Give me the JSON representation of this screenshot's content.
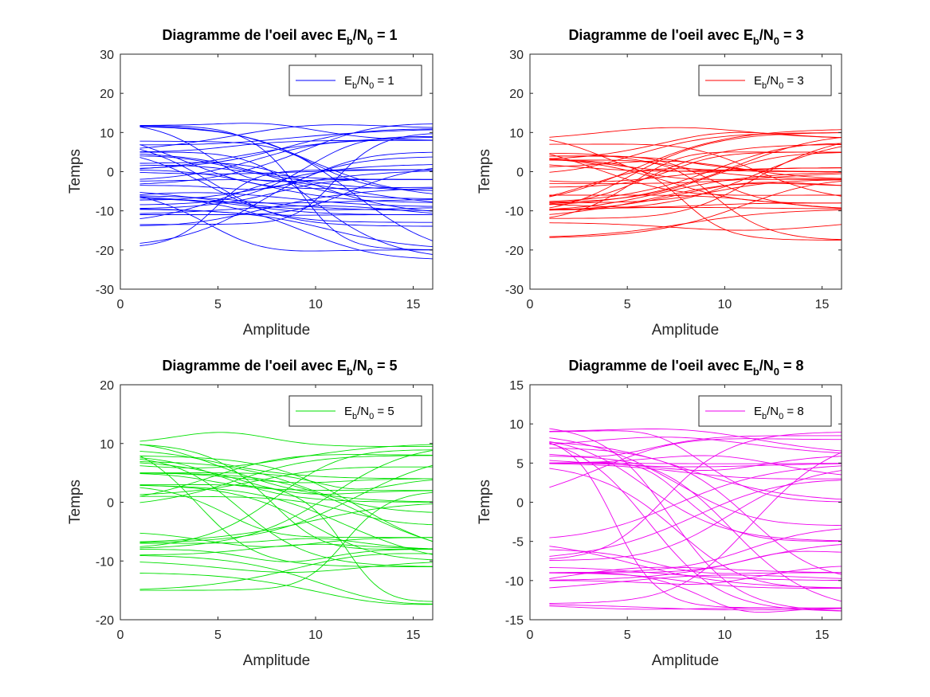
{
  "figure": {
    "panels": [
      {
        "title_prefix": "Diagramme de l'oeil avec E",
        "title_sub1": "b",
        "title_mid": "/N",
        "title_sub2": "0",
        "title_suffix": " = 1",
        "legend_prefix": "E",
        "legend_sub1": "b",
        "legend_mid": "/N",
        "legend_sub2": "0",
        "legend_suffix": " = 1",
        "color": "#0000ff"
      },
      {
        "title_prefix": "Diagramme de l'oeil avec E",
        "title_sub1": "b",
        "title_mid": "/N",
        "title_sub2": "0",
        "title_suffix": " = 3",
        "legend_prefix": "E",
        "legend_sub1": "b",
        "legend_mid": "/N",
        "legend_sub2": "0",
        "legend_suffix": " = 3",
        "color": "#ff0000"
      },
      {
        "title_prefix": "Diagramme de l'oeil avec E",
        "title_sub1": "b",
        "title_mid": "/N",
        "title_sub2": "0",
        "title_suffix": " = 5",
        "legend_prefix": "E",
        "legend_sub1": "b",
        "legend_mid": "/N",
        "legend_sub2": "0",
        "legend_suffix": " = 5",
        "color": "#00e000"
      },
      {
        "title_prefix": "Diagramme de l'oeil avec E",
        "title_sub1": "b",
        "title_mid": "/N",
        "title_sub2": "0",
        "title_suffix": " = 8",
        "legend_prefix": "E",
        "legend_sub1": "b",
        "legend_mid": "/N",
        "legend_sub2": "0",
        "legend_suffix": " = 8",
        "color": "#ee00ee"
      }
    ]
  },
  "chart_data": [
    {
      "type": "line",
      "title": "Diagramme de l'oeil avec Eb/N0 = 1",
      "xlabel": "Amplitude",
      "ylabel": "Temps",
      "xlim": [
        0,
        16
      ],
      "ylim": [
        -30,
        30
      ],
      "xticks": [
        0,
        5,
        10,
        15
      ],
      "yticks": [
        -30,
        -20,
        -10,
        0,
        10,
        20,
        30
      ],
      "legend": "top-right",
      "grid": false,
      "x": [
        1,
        2,
        3,
        4,
        5,
        6,
        7,
        8,
        9,
        10,
        11,
        12,
        13,
        14,
        15,
        16
      ],
      "series": [
        {
          "name": "Eb/N0 = 1",
          "values_by_x": {
            "1": [
              12.5,
              11.8,
              9,
              8.5,
              7.8,
              7,
              5,
              4,
              2,
              0.5,
              -2.5,
              -3.5,
              -4,
              -6,
              -8,
              -8.5,
              -9.5,
              -11,
              -12.5,
              -13.5,
              -19.5
            ],
            "16": [
              12,
              11,
              10,
              9.5,
              9,
              8,
              5,
              4,
              2,
              0.5,
              -2,
              -4,
              -5,
              -7,
              -8,
              -9,
              -10,
              -11,
              -13,
              -14,
              -20,
              -22.5
            ]
          }
        }
      ]
    },
    {
      "type": "line",
      "title": "Diagramme de l'oeil avec Eb/N0 = 3",
      "xlabel": "Amplitude",
      "ylabel": "Temps",
      "xlim": [
        0,
        16
      ],
      "ylim": [
        -30,
        30
      ],
      "xticks": [
        0,
        5,
        10,
        15
      ],
      "yticks": [
        -30,
        -20,
        -10,
        0,
        10,
        20,
        30
      ],
      "legend": "top-right",
      "grid": false,
      "x": [
        1,
        2,
        3,
        4,
        5,
        6,
        7,
        8,
        9,
        10,
        11,
        12,
        13,
        14,
        15,
        16
      ],
      "series": [
        {
          "name": "Eb/N0 = 3",
          "values_by_x": {
            "1": [
              11.5,
              10,
              9,
              8,
              7,
              6,
              4,
              3,
              1,
              -1,
              -3,
              -4,
              -6,
              -8,
              -9,
              -10,
              -12,
              -13,
              -17
            ],
            "16": [
              11,
              10,
              9.5,
              8.5,
              7,
              5,
              3,
              1,
              0,
              -2,
              -4,
              -6,
              -8,
              -9.5,
              -10,
              -11,
              -12,
              -17.5,
              -20
            ]
          }
        }
      ]
    },
    {
      "type": "line",
      "title": "Diagramme de l'oeil avec Eb/N0 = 5",
      "xlabel": "Amplitude",
      "ylabel": "Temps",
      "xlim": [
        0,
        16
      ],
      "ylim": [
        -20,
        20
      ],
      "xticks": [
        0,
        5,
        10,
        15
      ],
      "yticks": [
        -20,
        -10,
        0,
        10,
        20
      ],
      "legend": "top-right",
      "grid": false,
      "x": [
        1,
        2,
        3,
        4,
        5,
        6,
        7,
        8,
        9,
        10,
        11,
        12,
        13,
        14,
        15,
        16
      ],
      "series": [
        {
          "name": "Eb/N0 = 5",
          "values_by_x": {
            "1": [
              11,
              10,
              9,
              8,
              7,
              5,
              3,
              1,
              -1,
              -3,
              -5,
              -7,
              -8,
              -9,
              -10,
              -11,
              -12,
              -15
            ],
            "16": [
              10,
              9.5,
              9,
              8,
              6,
              4,
              2,
              0,
              -2,
              -4,
              -6,
              -8,
              -9,
              -10,
              -11,
              -15.5,
              -17
            ]
          }
        }
      ]
    },
    {
      "type": "line",
      "title": "Diagramme de l'oeil avec Eb/N0 = 8",
      "xlabel": "Amplitude",
      "ylabel": "Temps",
      "xlim": [
        0,
        16
      ],
      "ylim": [
        -15,
        15
      ],
      "xticks": [
        0,
        5,
        10,
        15
      ],
      "yticks": [
        -15,
        -10,
        -5,
        0,
        5,
        10,
        15
      ],
      "legend": "top-right",
      "grid": false,
      "x": [
        1,
        2,
        3,
        4,
        5,
        6,
        7,
        8,
        9,
        10,
        11,
        12,
        13,
        14,
        15,
        16
      ],
      "series": [
        {
          "name": "Eb/N0 = 8",
          "values_by_x": {
            "1": [
              10,
              9,
              8.5,
              8,
              7.5,
              7,
              6.5,
              6,
              5,
              -1,
              -2,
              -5,
              -6,
              -7.5,
              -8.5,
              -9,
              -10,
              -11.5,
              -13
            ],
            "16": [
              9.5,
              9,
              8.5,
              8,
              6,
              5,
              3,
              0,
              -3,
              -5,
              -6.5,
              -8,
              -9,
              -10,
              -11,
              -13.5,
              -14
            ]
          }
        }
      ]
    }
  ]
}
